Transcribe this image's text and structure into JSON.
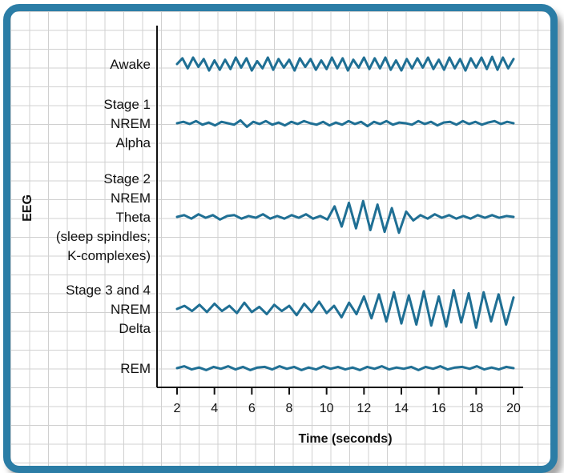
{
  "chart_data": {
    "type": "line",
    "xlabel": "Time (seconds)",
    "ylabel": "EEG",
    "xlim": [
      2,
      20
    ],
    "x_ticks": [
      "2",
      "4",
      "6",
      "8",
      "10",
      "12",
      "14",
      "16",
      "18",
      "20"
    ],
    "series": [
      {
        "name": "Awake",
        "label_lines": [
          "Awake"
        ],
        "color": "#1f6f94",
        "amplitude": 1.0,
        "frequency": "high",
        "values": [
          0.0,
          0.8,
          -0.6,
          0.9,
          -0.4,
          0.7,
          -0.9,
          0.5,
          -0.8,
          0.6,
          -0.7,
          0.9,
          -0.5,
          0.8,
          -0.9,
          0.4,
          -0.6,
          0.9,
          -0.8,
          0.7,
          -0.5,
          0.6,
          -0.9,
          0.8,
          -0.4,
          0.7,
          -0.8,
          0.5,
          -0.7,
          0.9,
          -0.6,
          0.8,
          -0.9,
          0.6,
          -0.5,
          0.9,
          -0.7,
          0.8,
          -0.6,
          0.9,
          -0.8,
          0.5,
          -0.9,
          0.7,
          -0.6,
          0.8,
          -0.5,
          0.9,
          -0.7,
          0.6,
          -0.8,
          0.9,
          -0.6,
          0.7,
          -0.9,
          0.8,
          -0.5,
          0.9,
          -0.7,
          1.0,
          -0.8,
          0.9,
          -0.6,
          0.7
        ]
      },
      {
        "name": "Stage 1 NREM Alpha",
        "label_lines": [
          "Stage 1",
          "NREM",
          "Alpha"
        ],
        "color": "#1f6f94",
        "amplitude": 0.4,
        "values": [
          0.0,
          0.2,
          -0.1,
          0.3,
          -0.2,
          0.1,
          -0.3,
          0.2,
          0.0,
          -0.2,
          0.4,
          -0.5,
          0.2,
          -0.1,
          0.3,
          -0.2,
          0.1,
          -0.3,
          0.2,
          -0.1,
          0.3,
          0.0,
          -0.2,
          0.2,
          -0.3,
          0.1,
          -0.2,
          0.3,
          -0.1,
          0.2,
          -0.4,
          0.2,
          -0.1,
          0.3,
          -0.2,
          0.1,
          0.0,
          -0.2,
          0.3,
          -0.1,
          0.2,
          -0.3,
          0.1,
          0.2,
          -0.2,
          0.3,
          -0.1,
          0.2,
          -0.2,
          0.1,
          0.3,
          -0.1,
          0.2,
          0.0
        ]
      },
      {
        "name": "Stage 2 NREM Theta (sleep spindles; K-complexes)",
        "label_lines": [
          "Stage 2",
          "NREM",
          "Theta",
          "(sleep spindles;",
          "K-complexes)"
        ],
        "color": "#1f6f94",
        "amplitude": 0.5,
        "spindle_burst_seconds": [
          9.5,
          11.8
        ],
        "values": [
          0.0,
          0.2,
          -0.2,
          0.3,
          -0.1,
          0.2,
          -0.3,
          0.1,
          0.2,
          -0.2,
          0.1,
          -0.1,
          0.3,
          -0.2,
          0.1,
          -0.2,
          0.2,
          -0.1,
          0.3,
          -0.2,
          0.1,
          -0.3,
          1.2,
          -1.1,
          1.6,
          -1.3,
          1.8,
          -1.5,
          1.4,
          -1.7,
          1.0,
          -1.8,
          0.6,
          -0.4,
          0.2,
          -0.2,
          0.3,
          -0.1,
          0.2,
          -0.2,
          0.1,
          -0.2,
          0.2,
          -0.1,
          0.2,
          -0.1,
          0.1,
          0.0
        ]
      },
      {
        "name": "Stage 3 and 4 NREM Delta",
        "label_lines": [
          "Stage 3 and 4",
          "NREM",
          "Delta"
        ],
        "color": "#1f6f94",
        "amplitude": 1.0,
        "values": [
          0.0,
          0.3,
          -0.2,
          0.4,
          -0.3,
          0.5,
          -0.2,
          0.3,
          -0.4,
          0.6,
          -0.3,
          0.2,
          -0.5,
          0.4,
          -0.2,
          0.3,
          -0.6,
          0.5,
          -0.3,
          0.7,
          -0.4,
          0.3,
          -0.8,
          0.6,
          -0.5,
          1.2,
          -0.9,
          1.4,
          -1.2,
          1.6,
          -1.4,
          1.3,
          -1.5,
          1.7,
          -1.6,
          1.2,
          -1.7,
          1.8,
          -1.3,
          1.5,
          -1.8,
          1.6,
          -1.2,
          1.4,
          -1.5,
          1.1
        ]
      },
      {
        "name": "REM",
        "label_lines": [
          "REM"
        ],
        "color": "#1f6f94",
        "amplitude": 0.35,
        "values": [
          0.0,
          0.3,
          -0.2,
          0.1,
          -0.3,
          0.2,
          -0.1,
          0.3,
          -0.2,
          0.2,
          -0.3,
          0.1,
          0.2,
          -0.2,
          0.3,
          -0.1,
          0.2,
          -0.3,
          0.1,
          -0.2,
          0.3,
          -0.1,
          0.2,
          -0.2,
          0.1,
          -0.3,
          0.2,
          -0.1,
          0.3,
          -0.2,
          0.1,
          -0.1,
          0.2,
          -0.3,
          0.2,
          -0.1,
          0.3,
          -0.2,
          0.1,
          0.2,
          -0.1,
          0.3,
          -0.2,
          0.1,
          -0.2,
          0.2,
          0.0
        ]
      }
    ],
    "grid": true
  }
}
